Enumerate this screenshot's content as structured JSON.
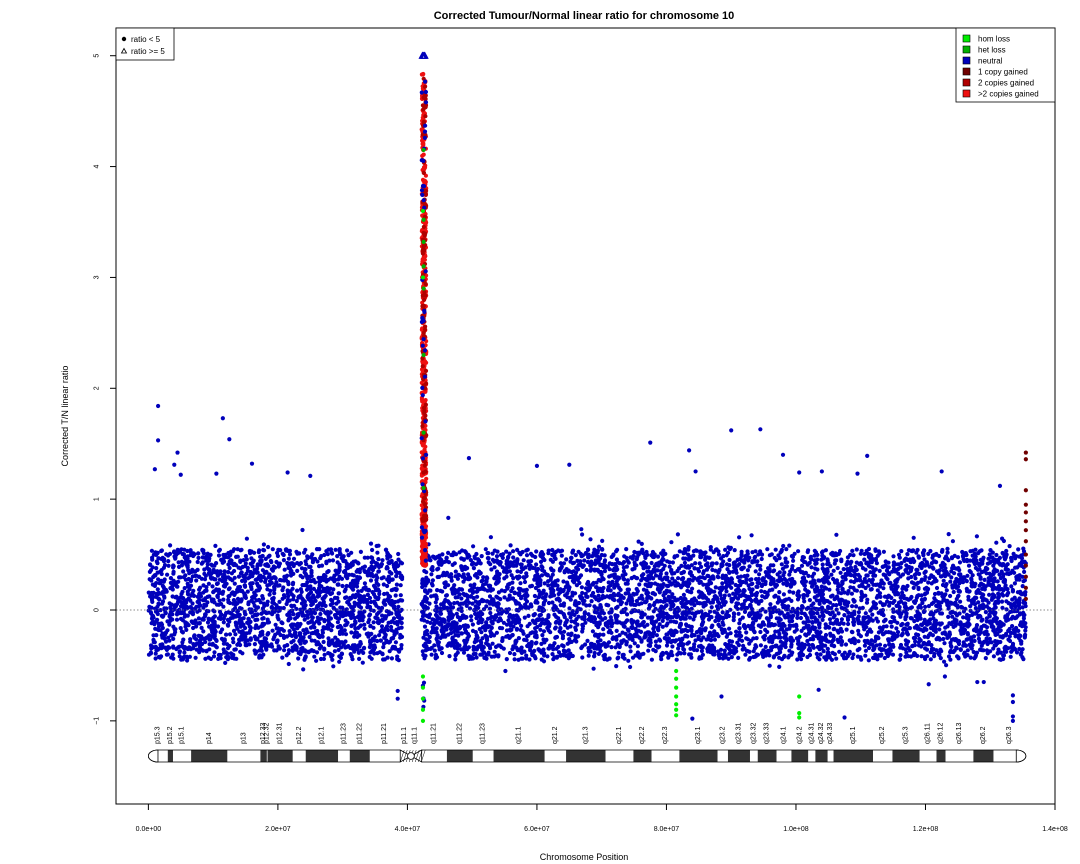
{
  "chart_data": {
    "type": "scatter",
    "title": "Corrected Tumour/Normal linear ratio for chromosome  10",
    "xlabel": "Chromosome Position",
    "ylabel": "Corrected T/N linear ratio",
    "xlim": [
      -5000000,
      140000000
    ],
    "ylim": [
      -1.75,
      5.25
    ],
    "x_ticks": [
      0,
      20000000,
      40000000,
      60000000,
      80000000,
      100000000,
      120000000,
      140000000
    ],
    "x_tick_labels": [
      "0.0e+00",
      "2.0e+07",
      "4.0e+07",
      "6.0e+07",
      "8.0e+07",
      "1.0e+08",
      "1.2e+08",
      "1.4e+08"
    ],
    "y_ticks": [
      -1,
      0,
      1,
      2,
      3,
      4,
      5
    ],
    "y_tick_labels": [
      "−1",
      "0",
      "1",
      "2",
      "3",
      "4",
      "5"
    ],
    "reference_line_y": 0,
    "chromosome_length": 135500000,
    "centromere": [
      39200000,
      42200000
    ],
    "shape_legend": {
      "placement": "top-left",
      "entries": [
        {
          "symbol": "filled-circle",
          "label": "ratio < 5"
        },
        {
          "symbol": "open-triangle",
          "label": "ratio >= 5"
        }
      ]
    },
    "color_legend": {
      "placement": "top-right",
      "entries": [
        {
          "label": "hom loss",
          "color": "#00ee00"
        },
        {
          "label": "het loss",
          "color": "#00b000"
        },
        {
          "label": "neutral",
          "color": "#0000bb"
        },
        {
          "label": "1 copy gained",
          "color": "#700000"
        },
        {
          "label": "2 copies gained",
          "color": "#b00000"
        },
        {
          "label": ">2 copies gained",
          "color": "#ee1010"
        }
      ]
    },
    "series": [
      {
        "name": "neutral",
        "color": "#0000bb",
        "x_range": [
          0,
          135500000
        ],
        "y_core": [
          -0.45,
          0.55
        ],
        "outliers": [
          {
            "x": 1500000,
            "y": 1.84
          },
          {
            "x": 1500000,
            "y": 1.53
          },
          {
            "x": 1000000,
            "y": 1.27
          },
          {
            "x": 4500000,
            "y": 1.42
          },
          {
            "x": 4000000,
            "y": 1.31
          },
          {
            "x": 5000000,
            "y": 1.22
          },
          {
            "x": 10500000,
            "y": 1.23
          },
          {
            "x": 11500000,
            "y": 1.73
          },
          {
            "x": 12500000,
            "y": 1.54
          },
          {
            "x": 16000000,
            "y": 1.32
          },
          {
            "x": 21500000,
            "y": 1.24
          },
          {
            "x": 25000000,
            "y": 1.21
          },
          {
            "x": 49500000,
            "y": 1.37
          },
          {
            "x": 60000000,
            "y": 1.3
          },
          {
            "x": 65000000,
            "y": 1.31
          },
          {
            "x": 77500000,
            "y": 1.51
          },
          {
            "x": 83500000,
            "y": 1.44
          },
          {
            "x": 84500000,
            "y": 1.25
          },
          {
            "x": 90000000,
            "y": 1.62
          },
          {
            "x": 94500000,
            "y": 1.63
          },
          {
            "x": 98000000,
            "y": 1.4
          },
          {
            "x": 100500000,
            "y": 1.24
          },
          {
            "x": 104000000,
            "y": 1.25
          },
          {
            "x": 109500000,
            "y": 1.23
          },
          {
            "x": 111000000,
            "y": 1.39
          },
          {
            "x": 122500000,
            "y": 1.25
          },
          {
            "x": 131500000,
            "y": 1.12
          },
          {
            "x": 38500000,
            "y": -0.73
          },
          {
            "x": 38500000,
            "y": -0.8
          },
          {
            "x": 84000000,
            "y": -0.98
          },
          {
            "x": 88500000,
            "y": -0.78
          },
          {
            "x": 103500000,
            "y": -0.72
          },
          {
            "x": 107500000,
            "y": -0.97
          },
          {
            "x": 120500000,
            "y": -0.67
          },
          {
            "x": 123000000,
            "y": -0.6
          },
          {
            "x": 128000000,
            "y": -0.65
          },
          {
            "x": 129000000,
            "y": -0.65
          },
          {
            "x": 133500000,
            "y": -0.77
          },
          {
            "x": 133500000,
            "y": -0.83
          },
          {
            "x": 133500000,
            "y": -0.96
          },
          {
            "x": 133500000,
            "y": -1.0
          }
        ]
      },
      {
        "name": ">2 copies gained",
        "color": "#ee1010",
        "x_range": [
          42200000,
          42900000
        ],
        "y_range": [
          0.4,
          4.85
        ]
      },
      {
        "name": "2 copies gained",
        "color": "#b00000",
        "x_range": [
          42300000,
          42900000
        ],
        "y_range": [
          0.8,
          4.8
        ]
      },
      {
        "name": "1 copy gained",
        "color": "#700000",
        "points": [
          {
            "x": 135500000,
            "y": 1.42
          },
          {
            "x": 135500000,
            "y": 1.36
          },
          {
            "x": 135500000,
            "y": 1.08
          },
          {
            "x": 135500000,
            "y": 0.95
          },
          {
            "x": 135500000,
            "y": 0.88
          },
          {
            "x": 135500000,
            "y": 0.8
          },
          {
            "x": 135500000,
            "y": 0.72
          },
          {
            "x": 135500000,
            "y": 0.62
          },
          {
            "x": 135500000,
            "y": 0.5
          },
          {
            "x": 135500000,
            "y": 0.4
          },
          {
            "x": 135500000,
            "y": 0.3
          },
          {
            "x": 135500000,
            "y": 0.2
          },
          {
            "x": 135500000,
            "y": 0.1
          }
        ]
      },
      {
        "name": "het loss",
        "color": "#00b000",
        "points": [
          {
            "x": 42500000,
            "y": 4.15
          },
          {
            "x": 42500000,
            "y": 3.52
          },
          {
            "x": 42500000,
            "y": 3.32
          },
          {
            "x": 42500000,
            "y": 3.1
          },
          {
            "x": 42500000,
            "y": 2.9
          },
          {
            "x": 42500000,
            "y": 2.3
          },
          {
            "x": 42500000,
            "y": 1.6
          },
          {
            "x": 42500000,
            "y": 1.1
          }
        ]
      },
      {
        "name": "hom loss",
        "color": "#00ee00",
        "points": [
          {
            "x": 42400000,
            "y": 3.6
          },
          {
            "x": 42400000,
            "y": 3.0
          },
          {
            "x": 42400000,
            "y": -0.6
          },
          {
            "x": 42400000,
            "y": -0.7
          },
          {
            "x": 42400000,
            "y": -0.8
          },
          {
            "x": 42400000,
            "y": -0.9
          },
          {
            "x": 42400000,
            "y": -1.0
          },
          {
            "x": 81500000,
            "y": -0.55
          },
          {
            "x": 81500000,
            "y": -0.62
          },
          {
            "x": 81500000,
            "y": -0.7
          },
          {
            "x": 81500000,
            "y": -0.78
          },
          {
            "x": 81500000,
            "y": -0.85
          },
          {
            "x": 81500000,
            "y": -0.9
          },
          {
            "x": 81500000,
            "y": -0.95
          },
          {
            "x": 100500000,
            "y": -0.78
          },
          {
            "x": 100500000,
            "y": -0.93
          },
          {
            "x": 100500000,
            "y": -0.97
          }
        ]
      },
      {
        "name": "ratio >= 5",
        "color": "#0000bb",
        "shape": "open-triangle",
        "points": [
          {
            "x": 42300000,
            "y": 5.0
          },
          {
            "x": 42400000,
            "y": 5.0
          },
          {
            "x": 42500000,
            "y": 5.0
          },
          {
            "x": 42600000,
            "y": 5.0
          },
          {
            "x": 42700000,
            "y": 5.0
          }
        ]
      }
    ],
    "cytobands": [
      {
        "name": "p15.3",
        "start": 0,
        "end": 3000000,
        "stain": "gneg"
      },
      {
        "name": "p15.2",
        "start": 3000000,
        "end": 3800000,
        "stain": "gpos25"
      },
      {
        "name": "p15.1",
        "start": 3800000,
        "end": 6600000,
        "stain": "gneg"
      },
      {
        "name": "p14",
        "start": 6600000,
        "end": 12200000,
        "stain": "gpos75"
      },
      {
        "name": "p13",
        "start": 12200000,
        "end": 17300000,
        "stain": "gneg"
      },
      {
        "name": "p12.33",
        "start": 17300000,
        "end": 18300000,
        "stain": "gpos75"
      },
      {
        "name": "p12.32",
        "start": 18300000,
        "end": 18400000,
        "stain": "gneg"
      },
      {
        "name": "p12.31",
        "start": 18400000,
        "end": 22300000,
        "stain": "gpos75"
      },
      {
        "name": "p12.2",
        "start": 22300000,
        "end": 24300000,
        "stain": "gneg"
      },
      {
        "name": "p12.1",
        "start": 24300000,
        "end": 29300000,
        "stain": "gpos50"
      },
      {
        "name": "p11.23",
        "start": 29300000,
        "end": 31100000,
        "stain": "gneg"
      },
      {
        "name": "p11.22",
        "start": 31100000,
        "end": 34200000,
        "stain": "gpos25"
      },
      {
        "name": "p11.21",
        "start": 34200000,
        "end": 38800000,
        "stain": "gneg"
      },
      {
        "name": "p11.1",
        "start": 38800000,
        "end": 40300000,
        "stain": "acen"
      },
      {
        "name": "q11.1",
        "start": 40300000,
        "end": 42100000,
        "stain": "acen"
      },
      {
        "name": "q11.21",
        "start": 42100000,
        "end": 46100000,
        "stain": "gneg"
      },
      {
        "name": "q11.22",
        "start": 46100000,
        "end": 50100000,
        "stain": "gpos25"
      },
      {
        "name": "q11.23",
        "start": 50100000,
        "end": 53300000,
        "stain": "gneg"
      },
      {
        "name": "q21.1",
        "start": 53300000,
        "end": 61200000,
        "stain": "gpos100"
      },
      {
        "name": "q21.2",
        "start": 61200000,
        "end": 64500000,
        "stain": "gneg"
      },
      {
        "name": "q21.3",
        "start": 64500000,
        "end": 70600000,
        "stain": "gpos100"
      },
      {
        "name": "q22.1",
        "start": 70600000,
        "end": 74900000,
        "stain": "gneg"
      },
      {
        "name": "q22.2",
        "start": 74900000,
        "end": 77700000,
        "stain": "gpos50"
      },
      {
        "name": "q22.3",
        "start": 77700000,
        "end": 82000000,
        "stain": "gneg"
      },
      {
        "name": "q23.1",
        "start": 82000000,
        "end": 87900000,
        "stain": "gpos100"
      },
      {
        "name": "q23.2",
        "start": 87900000,
        "end": 89500000,
        "stain": "gneg"
      },
      {
        "name": "q23.31",
        "start": 89500000,
        "end": 92900000,
        "stain": "gpos75"
      },
      {
        "name": "q23.32",
        "start": 92900000,
        "end": 94100000,
        "stain": "gneg"
      },
      {
        "name": "q23.33",
        "start": 94100000,
        "end": 97000000,
        "stain": "gpos50"
      },
      {
        "name": "q24.1",
        "start": 97000000,
        "end": 99300000,
        "stain": "gneg"
      },
      {
        "name": "q24.2",
        "start": 99300000,
        "end": 101900000,
        "stain": "gpos50"
      },
      {
        "name": "q24.31",
        "start": 101900000,
        "end": 103000000,
        "stain": "gneg"
      },
      {
        "name": "q24.32",
        "start": 103000000,
        "end": 104900000,
        "stain": "gpos25"
      },
      {
        "name": "q24.33",
        "start": 104900000,
        "end": 105800000,
        "stain": "gneg"
      },
      {
        "name": "q25.1",
        "start": 105800000,
        "end": 111900000,
        "stain": "gpos100"
      },
      {
        "name": "q25.2",
        "start": 111900000,
        "end": 114900000,
        "stain": "gneg"
      },
      {
        "name": "q25.3",
        "start": 114900000,
        "end": 119100000,
        "stain": "gpos75"
      },
      {
        "name": "q26.11",
        "start": 119100000,
        "end": 121700000,
        "stain": "gneg"
      },
      {
        "name": "q26.12",
        "start": 121700000,
        "end": 123100000,
        "stain": "gpos50"
      },
      {
        "name": "q26.13",
        "start": 123100000,
        "end": 127400000,
        "stain": "gneg"
      },
      {
        "name": "q26.2",
        "start": 127400000,
        "end": 130500000,
        "stain": "gpos50"
      },
      {
        "name": "q26.3",
        "start": 130500000,
        "end": 135500000,
        "stain": "gneg"
      }
    ]
  }
}
